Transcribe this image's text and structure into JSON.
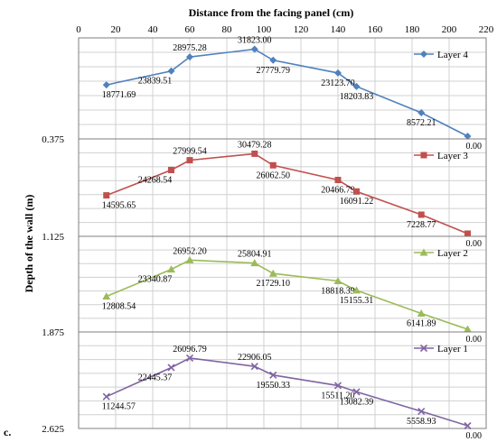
{
  "chart_data": {
    "type": "line",
    "title": "Distance  from the facing panel  (cm)",
    "ylabel": "Depth of the wall (m)",
    "figure_label": "c.",
    "x_ticks": [
      "0",
      "20",
      "40",
      "60",
      "80",
      "100",
      "120",
      "140",
      "160",
      "180",
      "200",
      "220"
    ],
    "xlim": [
      0,
      220
    ],
    "y_depth_ticks": [
      "0.375",
      "1.125",
      "1.875",
      "2.625"
    ],
    "x": [
      15,
      50,
      60,
      95,
      105,
      140,
      150,
      185,
      210
    ],
    "series": [
      {
        "name": "Layer 4",
        "color": "#4F81BD",
        "marker": "diamond",
        "values": [
          18771.69,
          23839.51,
          28975.28,
          31823.0,
          27779.79,
          23123.7,
          18203.83,
          8572.21,
          0.0
        ],
        "labels": [
          "18771.69",
          "23839.51",
          "28975.28",
          "31823.00",
          "27779.79",
          "23123.70",
          "18203.83",
          "8572.21",
          "0.00"
        ]
      },
      {
        "name": "Layer 3",
        "color": "#C0504D",
        "marker": "square",
        "values": [
          14595.65,
          24268.54,
          27999.54,
          30479.28,
          26062.5,
          20466.79,
          16091.22,
          7228.77,
          0.0
        ],
        "labels": [
          "14595.65",
          "24268.54",
          "27999.54",
          "30479.28",
          "26062.50",
          "20466.79",
          "16091.22",
          "7228.77",
          "0.00"
        ]
      },
      {
        "name": "Layer 2",
        "color": "#9BBB59",
        "marker": "triangle",
        "values": [
          12808.54,
          23340.87,
          26952.2,
          25804.91,
          21729.1,
          18818.39,
          15155.31,
          6141.89,
          0.0
        ],
        "labels": [
          "12808.54",
          "23340.87",
          "26952.20",
          "25804.91",
          "21729.10",
          "18818.39",
          "15155.31",
          "6141.89",
          "0.00"
        ]
      },
      {
        "name": "Layer 1",
        "color": "#8064A2",
        "marker": "x",
        "values": [
          11244.57,
          22445.37,
          26096.79,
          22906.05,
          19550.33,
          15511.2,
          13082.39,
          5558.93,
          0.0
        ],
        "labels": [
          "11244.57",
          "22445.37",
          "26096.79",
          "22906.05",
          "19550.33",
          "15511.20",
          "13082.39",
          "5558.93",
          "0.00"
        ]
      }
    ]
  }
}
